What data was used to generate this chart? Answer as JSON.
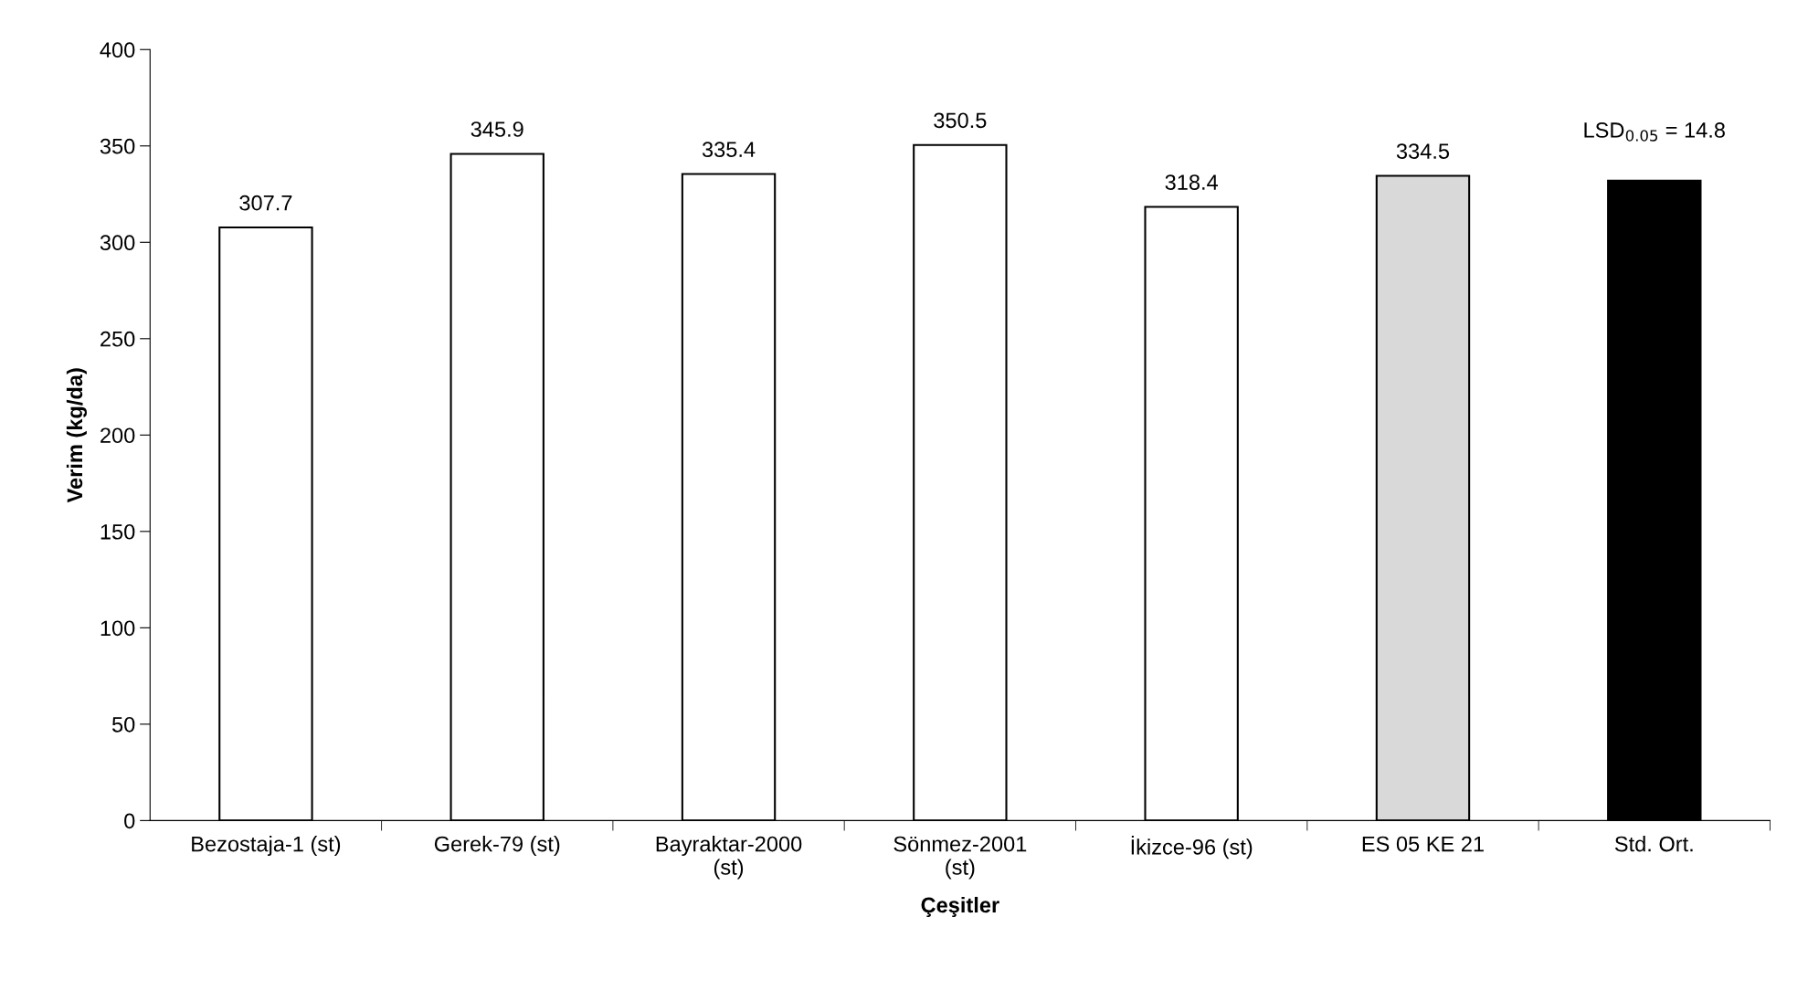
{
  "chart_data": {
    "type": "bar",
    "xlabel": "Çeşitler",
    "ylabel": "Verim (kg/da)",
    "categories": [
      "Bezostaja-1 (st)",
      "Gerek-79 (st)",
      "Bayraktar-2000\n(st)",
      "Sönmez-2001\n(st)",
      "İkizce-96 (st)",
      "ES 05 KE 21",
      "Std. Ort."
    ],
    "values": [
      307.7,
      345.9,
      335.4,
      350.5,
      318.4,
      334.5,
      332
    ],
    "value_labels": [
      "307.7",
      "345.9",
      "335.4",
      "350.5",
      "318.4",
      "334.5",
      null
    ],
    "colors": [
      "#ffffff",
      "#ffffff",
      "#ffffff",
      "#ffffff",
      "#ffffff",
      "#d9d9d9",
      "#000000"
    ],
    "ylim": [
      0,
      400
    ],
    "yticks": [
      0,
      50,
      100,
      150,
      200,
      250,
      300,
      350,
      400
    ],
    "annotations": [
      "LSD$_{0.05}$ = 14.8"
    ],
    "grid": false,
    "legend": false
  }
}
